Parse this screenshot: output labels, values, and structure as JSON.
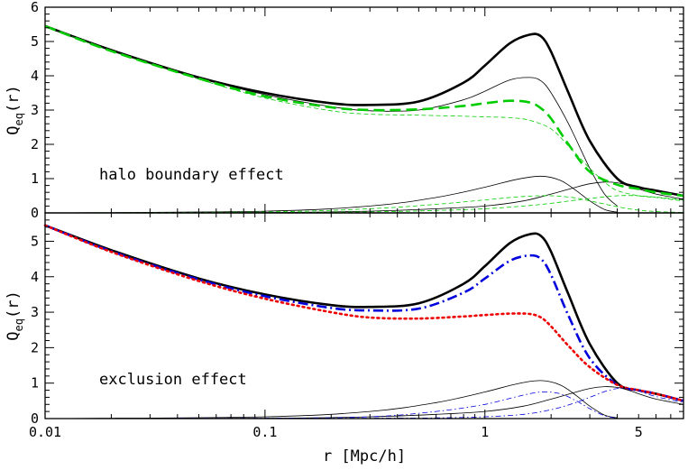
{
  "chart_data": [
    {
      "type": "line",
      "panel": "top",
      "annotation": "halo boundary effect",
      "ylabel_main": "Q",
      "ylabel_sub": "eq",
      "ylabel_tail": "(r)",
      "xscale": "log",
      "xlim": [
        0.01,
        8
      ],
      "ylim": [
        0,
        6
      ],
      "yticks": [
        0,
        1,
        2,
        3,
        4,
        5,
        6
      ],
      "ytick_labels": [
        "0",
        "1",
        "2",
        "3",
        "4",
        "5",
        "6"
      ],
      "colors": {
        "total": "#000000",
        "green": "#00cc00"
      },
      "series": [
        {
          "style": "thick-black",
          "x": [
            0.01,
            0.02,
            0.05,
            0.1,
            0.2,
            0.3,
            0.5,
            0.8,
            1.0,
            1.3,
            1.6,
            1.8,
            2.0,
            2.4,
            3.0,
            4.0,
            5.0,
            6.0,
            8.0
          ],
          "y": [
            5.45,
            4.75,
            3.95,
            3.5,
            3.2,
            3.15,
            3.25,
            3.8,
            4.3,
            4.95,
            5.2,
            5.15,
            4.7,
            3.5,
            2.1,
            1.0,
            0.75,
            0.65,
            0.5
          ]
        },
        {
          "style": "thin-black",
          "x": [
            0.01,
            0.02,
            0.05,
            0.1,
            0.2,
            0.3,
            0.5,
            0.8,
            1.0,
            1.3,
            1.6,
            1.8,
            2.0,
            2.4,
            3.0,
            3.5,
            4.0
          ],
          "y": [
            5.45,
            4.75,
            3.95,
            3.45,
            3.1,
            2.98,
            3.0,
            3.3,
            3.55,
            3.88,
            3.95,
            3.85,
            3.5,
            2.6,
            1.3,
            0.55,
            0.2
          ]
        },
        {
          "style": "thin-black",
          "x": [
            0.01,
            0.1,
            0.3,
            0.6,
            1.0,
            1.4,
            1.8,
            2.2,
            2.6,
            3.0,
            3.5,
            4.0
          ],
          "y": [
            0,
            0.05,
            0.2,
            0.45,
            0.75,
            0.98,
            1.07,
            0.95,
            0.65,
            0.35,
            0.1,
            0.02
          ]
        },
        {
          "style": "thin-black",
          "x": [
            0.01,
            0.1,
            0.3,
            0.6,
            1.0,
            1.5,
            2.0,
            2.5,
            3.0,
            3.5,
            4.0,
            4.5,
            5.0,
            6.0,
            8.0
          ],
          "y": [
            0,
            0.01,
            0.05,
            0.12,
            0.2,
            0.35,
            0.55,
            0.72,
            0.85,
            0.9,
            0.88,
            0.8,
            0.7,
            0.55,
            0.4
          ]
        },
        {
          "style": "thick-green-dashed",
          "x": [
            0.01,
            0.02,
            0.05,
            0.1,
            0.2,
            0.3,
            0.5,
            0.8,
            1.0,
            1.3,
            1.6,
            1.8,
            2.0,
            2.4,
            3.0,
            4.0,
            5.0,
            6.0,
            8.0
          ],
          "y": [
            5.45,
            4.72,
            3.92,
            3.4,
            3.08,
            3.0,
            3.02,
            3.12,
            3.2,
            3.27,
            3.22,
            3.05,
            2.75,
            2.0,
            1.2,
            0.82,
            0.7,
            0.6,
            0.5
          ]
        },
        {
          "style": "thin-green-dashed",
          "x": [
            0.01,
            0.02,
            0.05,
            0.1,
            0.2,
            0.3,
            0.5,
            0.8,
            1.0,
            1.3,
            1.6,
            2.0,
            2.4,
            3.0,
            3.5,
            4.0,
            5.0,
            6.0,
            8.0
          ],
          "y": [
            5.45,
            4.72,
            3.9,
            3.35,
            2.98,
            2.88,
            2.85,
            2.82,
            2.8,
            2.78,
            2.7,
            2.45,
            1.95,
            1.3,
            0.9,
            0.65,
            0.5,
            0.45,
            0.35
          ]
        },
        {
          "style": "thin-green-dashed",
          "x": [
            0.01,
            0.1,
            0.3,
            0.6,
            1.0,
            1.5,
            2.0,
            2.5,
            3.0,
            4.0,
            5.0,
            6.0,
            8.0
          ],
          "y": [
            0,
            0.03,
            0.12,
            0.25,
            0.38,
            0.48,
            0.5,
            0.45,
            0.35,
            0.18,
            0.08,
            0.04,
            0.01
          ]
        },
        {
          "style": "thin-green-dashed",
          "x": [
            0.01,
            0.1,
            0.3,
            0.6,
            1.0,
            1.5,
            2.0,
            2.5,
            3.0,
            4.0,
            5.0,
            6.0,
            8.0
          ],
          "y": [
            0,
            0.01,
            0.03,
            0.07,
            0.12,
            0.2,
            0.28,
            0.36,
            0.42,
            0.5,
            0.5,
            0.46,
            0.38
          ]
        }
      ]
    },
    {
      "type": "line",
      "panel": "bottom",
      "annotation": "exclusion effect",
      "ylabel_main": "Q",
      "ylabel_sub": "eq",
      "ylabel_tail": "(r)",
      "xlabel": "r [Mpc/h]",
      "xscale": "log",
      "xlim": [
        0.01,
        8
      ],
      "xticks": [
        0.01,
        0.1,
        1,
        5
      ],
      "xtick_labels": [
        "0.01",
        "0.1",
        "1",
        "5"
      ],
      "ylim": [
        0,
        5.8
      ],
      "yticks": [
        0,
        1,
        2,
        3,
        4,
        5
      ],
      "ytick_labels": [
        "0",
        "1",
        "2",
        "3",
        "4",
        "5"
      ],
      "colors": {
        "total": "#000000",
        "blue": "#0000dd",
        "red": "#ee0000"
      },
      "series": [
        {
          "style": "thick-black",
          "x": [
            0.01,
            0.02,
            0.05,
            0.1,
            0.2,
            0.3,
            0.5,
            0.8,
            1.0,
            1.3,
            1.6,
            1.8,
            2.0,
            2.4,
            3.0,
            4.0,
            5.0,
            6.0,
            8.0
          ],
          "y": [
            5.45,
            4.75,
            3.95,
            3.5,
            3.2,
            3.15,
            3.25,
            3.8,
            4.3,
            4.95,
            5.2,
            5.15,
            4.7,
            3.5,
            2.1,
            1.0,
            0.8,
            0.7,
            0.5
          ]
        },
        {
          "style": "thick-blue-dashdot",
          "x": [
            0.01,
            0.02,
            0.05,
            0.1,
            0.2,
            0.3,
            0.5,
            0.8,
            1.0,
            1.3,
            1.6,
            1.8,
            2.0,
            2.4,
            3.0,
            4.0,
            5.0,
            6.0,
            8.0
          ],
          "y": [
            5.45,
            4.72,
            3.92,
            3.45,
            3.12,
            3.05,
            3.1,
            3.55,
            3.95,
            4.45,
            4.6,
            4.5,
            4.05,
            2.9,
            1.7,
            0.95,
            0.8,
            0.7,
            0.5
          ]
        },
        {
          "style": "thick-red-dotted",
          "x": [
            0.01,
            0.02,
            0.05,
            0.1,
            0.2,
            0.3,
            0.5,
            0.8,
            1.0,
            1.3,
            1.6,
            1.8,
            2.0,
            2.4,
            3.0,
            4.0,
            5.0,
            6.0,
            8.0
          ],
          "y": [
            5.45,
            4.7,
            3.88,
            3.38,
            3.0,
            2.85,
            2.82,
            2.88,
            2.92,
            2.96,
            2.95,
            2.85,
            2.6,
            2.05,
            1.45,
            0.95,
            0.8,
            0.7,
            0.5
          ]
        },
        {
          "style": "thin-black",
          "x": [
            0.01,
            0.1,
            0.3,
            0.6,
            1.0,
            1.4,
            1.8,
            2.2,
            2.6,
            3.0,
            3.5,
            4.0
          ],
          "y": [
            0,
            0.05,
            0.2,
            0.45,
            0.75,
            0.98,
            1.07,
            0.95,
            0.65,
            0.35,
            0.1,
            0.02
          ]
        },
        {
          "style": "thin-black",
          "x": [
            0.01,
            0.1,
            0.3,
            0.6,
            1.0,
            1.5,
            2.0,
            2.5,
            3.0,
            3.5,
            4.0,
            4.5,
            5.0,
            6.0,
            8.0
          ],
          "y": [
            0,
            0.01,
            0.05,
            0.12,
            0.2,
            0.35,
            0.55,
            0.72,
            0.85,
            0.9,
            0.88,
            0.8,
            0.7,
            0.55,
            0.4
          ]
        },
        {
          "style": "thin-blue-dashdot",
          "x": [
            0.01,
            0.1,
            0.3,
            0.6,
            1.0,
            1.4,
            1.8,
            2.2,
            2.6,
            3.0,
            3.5,
            4.0
          ],
          "y": [
            0,
            0.01,
            0.05,
            0.2,
            0.4,
            0.62,
            0.75,
            0.7,
            0.5,
            0.28,
            0.08,
            0.01
          ]
        },
        {
          "style": "thin-blue-dashdot",
          "x": [
            0.01,
            0.3,
            0.6,
            1.0,
            1.5,
            2.0,
            2.5,
            3.0,
            3.5,
            4.0,
            4.5,
            5.0,
            6.0,
            8.0
          ],
          "y": [
            0,
            0.01,
            0.02,
            0.05,
            0.12,
            0.25,
            0.42,
            0.6,
            0.76,
            0.85,
            0.85,
            0.78,
            0.62,
            0.45
          ]
        }
      ]
    }
  ]
}
